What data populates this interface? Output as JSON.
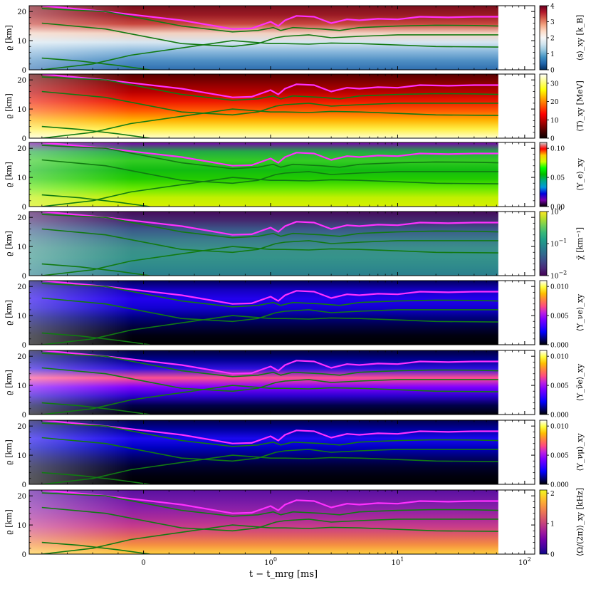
{
  "chart_data": {
    "type": "heatmap",
    "x_axis": {
      "label": "t − t_mrg [ms]",
      "scale": "symlog",
      "tick_labels": [
        "0",
        "10^0",
        "10^1",
        "10^2"
      ],
      "tick_values": [
        0,
        1,
        10,
        100
      ],
      "data_end": 62
    },
    "y_axis": {
      "label": "ϱ [km]",
      "range": [
        0,
        22
      ],
      "tick_labels": [
        "0",
        "10",
        "20"
      ],
      "tick_values": [
        0,
        10,
        20
      ]
    },
    "panels": [
      {
        "colorbar_label": "⟨s⟩_xy [k_B]",
        "cmap": "RdBu_r",
        "range": [
          0,
          4
        ],
        "ticks": [
          0,
          1,
          2,
          3,
          4
        ],
        "tick_labels": [
          "0",
          "1",
          "2",
          "3",
          "4"
        ],
        "colorbar_scale": "linear"
      },
      {
        "colorbar_label": "⟨T⟩_xy [MeV]",
        "cmap": "hot",
        "range": [
          0,
          35
        ],
        "ticks": [
          0,
          10,
          20,
          30
        ],
        "tick_labels": [
          "0",
          "10",
          "20",
          "30"
        ],
        "colorbar_scale": "linear"
      },
      {
        "colorbar_label": "⟨Y_e⟩_xy",
        "cmap": "nipy_spectral",
        "range": [
          0,
          0.11
        ],
        "ticks": [
          0,
          0.05,
          0.1
        ],
        "tick_labels": [
          "0.00",
          "0.05",
          "0.10"
        ],
        "colorbar_scale": "linear"
      },
      {
        "colorbar_label": "χ̄ [km⁻¹]",
        "cmap": "viridis",
        "range": [
          0.01,
          1
        ],
        "ticks": [
          0.01,
          0.1,
          1
        ],
        "tick_labels": [
          "10^−2",
          "10^−1",
          "10^0"
        ],
        "colorbar_scale": "log"
      },
      {
        "colorbar_label": "⟨Y_νe⟩_xy",
        "cmap": "gnuplot2",
        "range": [
          0,
          0.011
        ],
        "ticks": [
          0,
          0.005,
          0.01
        ],
        "tick_labels": [
          "0.000",
          "0.005",
          "0.010"
        ],
        "colorbar_scale": "linear"
      },
      {
        "colorbar_label": "⟨Y_ν̄e⟩_xy",
        "cmap": "gnuplot2",
        "range": [
          0,
          0.011
        ],
        "ticks": [
          0,
          0.005,
          0.01
        ],
        "tick_labels": [
          "0.000",
          "0.005",
          "0.010"
        ],
        "colorbar_scale": "linear"
      },
      {
        "colorbar_label": "⟨Y_νμ⟩_xy",
        "cmap": "gnuplot2",
        "range": [
          0,
          0.011
        ],
        "ticks": [
          0,
          0.005,
          0.01
        ],
        "tick_labels": [
          "0.000",
          "0.005",
          "0.010"
        ],
        "colorbar_scale": "linear"
      },
      {
        "colorbar_label": "⟨Ω/(2π)⟩_xy [kHz]",
        "cmap": "plasma",
        "range": [
          0,
          2.1
        ],
        "ticks": [
          0,
          1,
          2
        ],
        "tick_labels": [
          "0",
          "1",
          "2"
        ],
        "colorbar_scale": "linear"
      }
    ],
    "contours": [
      {
        "color": "#ff30ff",
        "points": [
          [
            -0.8,
            22
          ],
          [
            -0.3,
            20
          ],
          [
            0.3,
            17
          ],
          [
            0.7,
            14
          ],
          [
            0.85,
            14.2
          ],
          [
            1.0,
            16.5
          ],
          [
            1.15,
            15
          ],
          [
            1.3,
            17
          ],
          [
            1.6,
            18.5
          ],
          [
            2.2,
            18.2
          ],
          [
            3,
            16
          ],
          [
            4,
            17.3
          ],
          [
            5,
            17
          ],
          [
            7,
            17.5
          ],
          [
            10,
            17.3
          ],
          [
            15,
            18.2
          ],
          [
            25,
            18
          ],
          [
            40,
            18.2
          ],
          [
            62,
            18.2
          ]
        ]
      },
      {
        "color": "#127a12",
        "points": [
          [
            -0.8,
            21
          ],
          [
            -0.3,
            20
          ],
          [
            0.3,
            15
          ],
          [
            0.7,
            13
          ],
          [
            0.9,
            13.5
          ],
          [
            1.05,
            14.5
          ],
          [
            1.2,
            13.5
          ],
          [
            1.5,
            14.5
          ],
          [
            2.5,
            14
          ],
          [
            3.5,
            13.5
          ],
          [
            5,
            14.5
          ],
          [
            10,
            15
          ],
          [
            20,
            15.3
          ],
          [
            40,
            15.2
          ],
          [
            62,
            15
          ]
        ]
      },
      {
        "color": "#127a12",
        "points": [
          [
            -0.8,
            16
          ],
          [
            -0.3,
            14
          ],
          [
            0.3,
            9
          ],
          [
            0.7,
            8
          ],
          [
            0.9,
            9
          ],
          [
            1.1,
            11
          ],
          [
            1.3,
            11.5
          ],
          [
            2,
            12
          ],
          [
            3,
            11
          ],
          [
            5,
            11.5
          ],
          [
            10,
            12
          ],
          [
            20,
            12
          ],
          [
            62,
            12
          ]
        ]
      },
      {
        "color": "#127a12",
        "points": [
          [
            -0.8,
            0
          ],
          [
            -0.4,
            2
          ],
          [
            -0.1,
            5
          ],
          [
            0.3,
            7.5
          ],
          [
            0.7,
            10
          ],
          [
            1.0,
            9
          ],
          [
            1.3,
            9
          ],
          [
            2,
            8.8
          ],
          [
            3,
            9.2
          ],
          [
            5,
            9
          ],
          [
            10,
            8.5
          ],
          [
            20,
            8
          ],
          [
            62,
            7.8
          ]
        ]
      },
      {
        "color": "#127a12",
        "points": [
          [
            -0.8,
            4
          ],
          [
            -0.5,
            3
          ],
          [
            -0.2,
            1.5
          ],
          [
            0.05,
            0
          ]
        ]
      }
    ]
  }
}
